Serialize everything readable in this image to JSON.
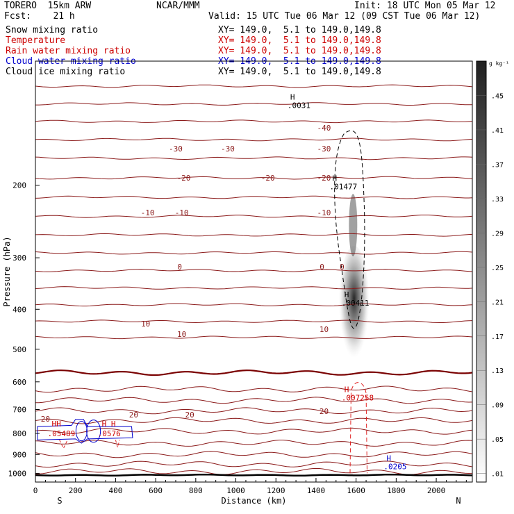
{
  "header": {
    "model": "TORERO  15km ARW",
    "center": "NCAR/MMM",
    "init": "Init: 18 UTC Mon 05 Mar 12",
    "fcst": "Fcst:    21 h",
    "valid": "Valid: 15 UTC Tue 06 Mar 12 (09 CST Tue 06 Mar 12)",
    "fields": [
      {
        "name": "Snow mixing ratio",
        "xy": "XY= 149.0,  5.1 to 149.0,149.8",
        "color": "#000000"
      },
      {
        "name": "Temperature",
        "xy": "XY= 149.0,  5.1 to 149.0,149.8",
        "color": "#cc0000"
      },
      {
        "name": "Rain water mixing ratio",
        "xy": "XY= 149.0,  5.1 to 149.0,149.8",
        "color": "#cc0000"
      },
      {
        "name": "Cloud water mixing ratio",
        "xy": "XY= 149.0,  5.1 to 149.0,149.8",
        "color": "#0000cc"
      },
      {
        "name": "Cloud ice mixing ratio",
        "xy": "XY= 149.0,  5.1 to 149.0,149.8",
        "color": "#000000"
      }
    ]
  },
  "chart_data": {
    "type": "cross-section",
    "xlabel": "Distance (km)",
    "ylabel": "Pressure (hPa)",
    "xlim": [
      0,
      2180
    ],
    "ylim": [
      1050,
      100
    ],
    "y_scale": "log",
    "x_ticks": [
      0,
      200,
      400,
      600,
      800,
      1000,
      1200,
      1400,
      1600,
      1800,
      2000
    ],
    "x_tick_labels": [
      "0",
      "200",
      "400",
      "600",
      "800",
      "1000",
      "1200",
      "1400",
      "1600",
      "1800",
      "2000"
    ],
    "y_ticks": [
      200,
      300,
      400,
      500,
      600,
      700,
      800,
      900,
      1000
    ],
    "y_tick_labels": [
      "200",
      "300",
      "400",
      "500",
      "600",
      "700",
      "800",
      "900",
      "1000"
    ],
    "end_labels": {
      "left": "S",
      "right": "N"
    },
    "colorbar": {
      "unit": "g kg⁻¹",
      "levels": [
        ".01",
        ".05",
        ".09",
        ".13",
        ".17",
        ".21",
        ".25",
        ".29",
        ".33",
        ".37",
        ".41",
        ".45"
      ],
      "level_values": [
        0.01,
        0.05,
        0.09,
        0.13,
        0.17,
        0.21,
        0.25,
        0.29,
        0.33,
        0.37,
        0.41,
        0.45
      ],
      "max": 0.49
    },
    "temperature_contours": [
      {
        "label": "-30",
        "label_x": [
          700,
          960,
          1440
        ],
        "color": "#8b1a1a"
      },
      {
        "label": "-20",
        "label_x": [
          740,
          1160,
          1440
        ],
        "color": "#8b1a1a"
      },
      {
        "label": "-10",
        "label_x": [
          560,
          730,
          1440
        ],
        "color": "#8b1a1a"
      },
      {
        "label": "-40",
        "label_x": [
          1440
        ],
        "color": "#8b1a1a"
      },
      {
        "label": "0",
        "label_x": [
          720,
          1430,
          1530
        ],
        "color": "#8b1a1a"
      },
      {
        "label": "10",
        "label_x": [
          550,
          730,
          1440
        ],
        "color": "#8b1a1a"
      },
      {
        "label": "20",
        "label_x": [
          50,
          490,
          770,
          1440
        ],
        "color": "#8b1a1a"
      }
    ],
    "maxima": [
      {
        "mark": "H",
        "value": ".01477",
        "x": 1530,
        "p": 200,
        "field": "Cloud ice mixing ratio",
        "color": "#000000"
      },
      {
        "mark": "H",
        "value": ".00411",
        "x": 1590,
        "p": 383,
        "field": "Snow mixing ratio",
        "color": "#000000"
      },
      {
        "mark": "H",
        "value": ".007258",
        "x": 1590,
        "p": 650,
        "field": "Rain water mixing ratio",
        "color": "#cc0000"
      },
      {
        "mark": "H",
        "value": ".0205",
        "x": 1800,
        "p": 955,
        "field": "Cloud water mixing ratio",
        "color": "#0000cc"
      },
      {
        "mark": "H",
        "value": ".0031",
        "x": 1320,
        "p": 127,
        "field": "Cloud ice mixing ratio",
        "color": "#000000"
      }
    ],
    "overlapping_maxima_labels": [
      {
        "text": "HH",
        "value": ".05489",
        "x": 130,
        "p": 800
      },
      {
        "text": "H H",
        "value": ".0576",
        "x": 380,
        "p": 800
      }
    ],
    "overprinted_text": ".0031",
    "freezing_level_hpa": 570,
    "ground_level_hpa": 1010
  }
}
